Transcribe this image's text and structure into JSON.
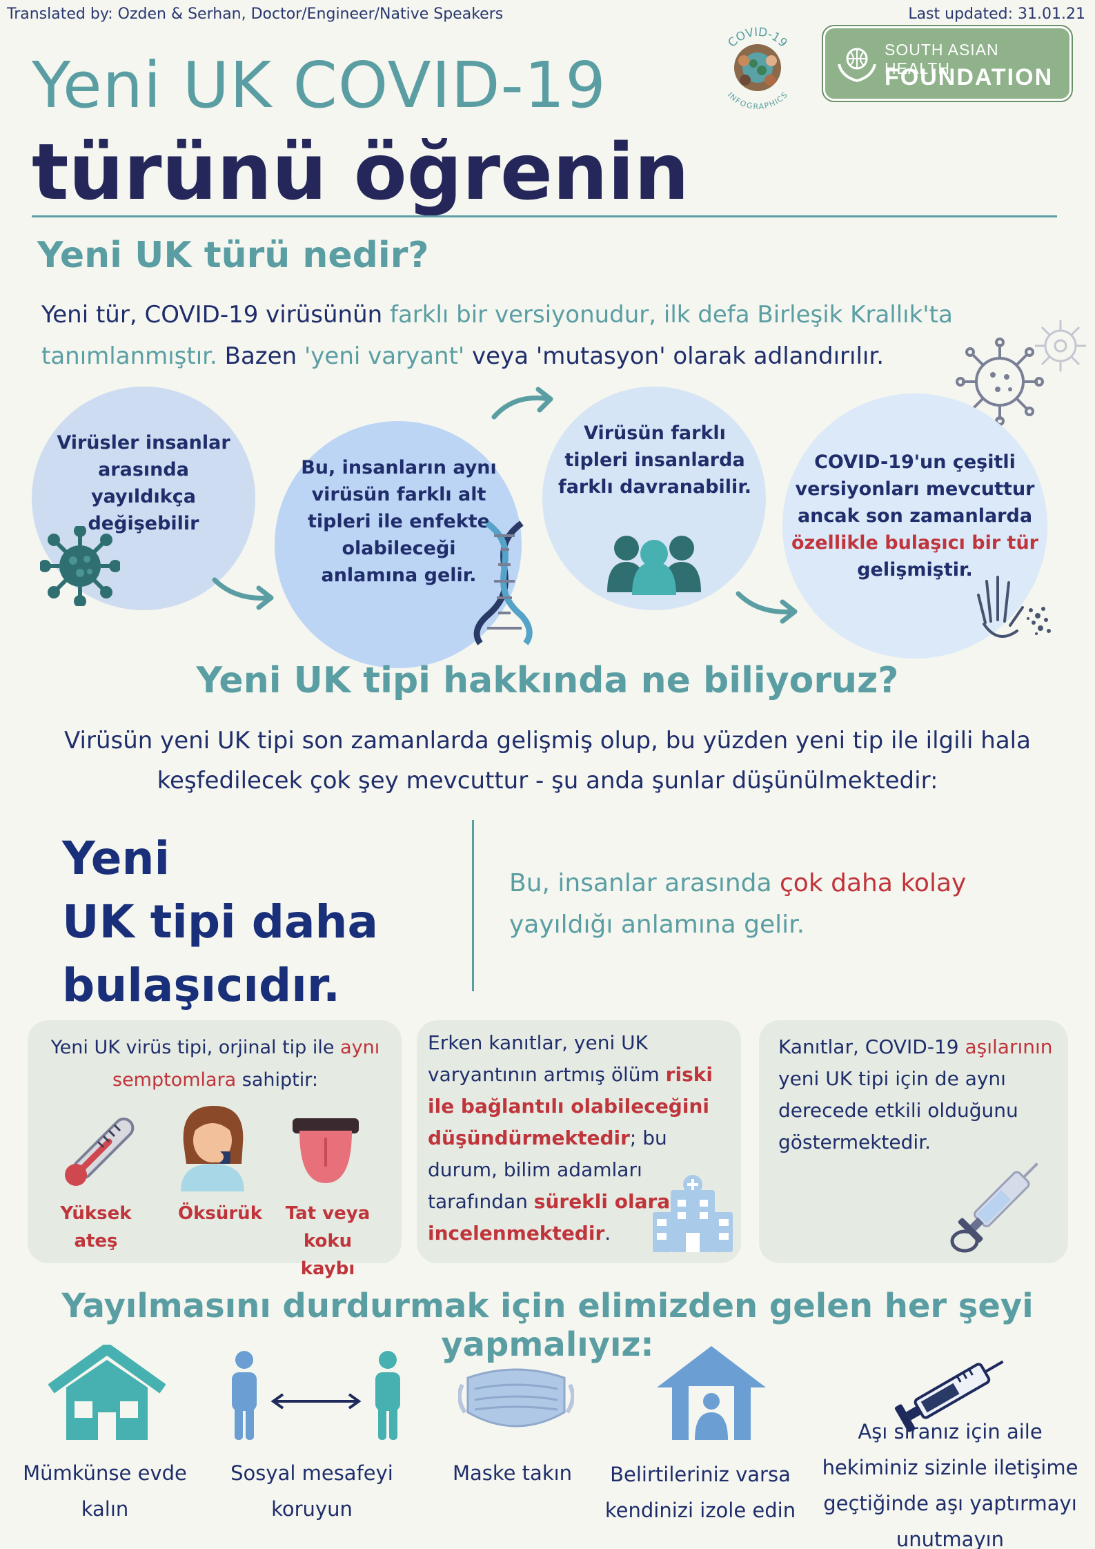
{
  "header": {
    "credit": "Translated by: Ozden & Serhan, Doctor/Engineer/Native Speakers",
    "updated": "Last updated: 31.01.21",
    "badge_top": "COVID-19",
    "badge_bottom": "INFOGRAPHICS",
    "org_line1": "SOUTH ASIAN HEALTH",
    "org_line2": "FOUNDATION"
  },
  "title": {
    "line1": "Yeni UK COVID-19",
    "line2": "türünü öğrenin"
  },
  "what": {
    "heading": "Yeni UK türü nedir?",
    "p_a": "Yeni tür, COVID-19 virüsünün ",
    "p_b": "farklı bir versiyonudur, ilk defa Birleşik Krallık'ta tanımlanmıştır.",
    "p_c": " Bazen ",
    "p_d": "'yeni varyant'",
    "p_e": " veya 'mutasyon' olarak adlandırılır."
  },
  "circles": {
    "c1": "Virüsler insanlar arasında yayıldıkça değişebilir",
    "c2": "Bu, insanların aynı virüsün farklı alt tipleri ile enfekte olabileceği anlamına gelir.",
    "c3": "Virüsün farklı tipleri insanlarda farklı davranabilir.",
    "c4_a": "COVID-19'un çeşitli versiyonları mevcuttur ancak son zamanlarda",
    "c4_b": "özellikle bulaşıcı bir tür",
    "c4_c": "gelişmiştir."
  },
  "know": {
    "heading": "Yeni UK tipi hakkında ne biliyoruz?",
    "line1": "Virüsün yeni UK tipi son zamanlarda gelişmiş olup, bu yüzden yeni tip ile ilgili hala",
    "line2": "keşfedilecek çok şey mevcuttur - şu anda şunlar düşünülmektedir:"
  },
  "claim": {
    "l1": "Yeni",
    "l2": "UK tipi daha",
    "l3": "bulaşıcıdır.",
    "expl_a": "Bu, insanlar arasında ",
    "expl_b": "çok daha kolay",
    "expl_c": "yayıldığı anlamına gelir."
  },
  "card1": {
    "a": "Yeni UK virüs tipi, orjinal tip ile ",
    "b": "aynı semptomlara",
    "c": " sahiptir:",
    "s1": "Yüksek ateş",
    "s2": "Öksürük",
    "s3": "Tat veya koku kaybı"
  },
  "card2": {
    "a": "Erken kanıtlar, yeni UK varyantının artmış ölüm ",
    "b": "riski ile bağlantılı olabileceğini düşündürmektedir",
    "c": "; bu durum, bilim adamları tarafından ",
    "d": "sürekli olarak incelenmektedir",
    "e": "."
  },
  "card3": {
    "a": "Kanıtlar, COVID-19 ",
    "b": "aşılarının",
    "c": " yeni UK tipi için de aynı derecede etkili olduğunu göstermektedir."
  },
  "stop": {
    "heading": "Yayılmasını durdurmak için elimizden gelen her şeyi yapmalıyız:",
    "a1": "Mümkünse evde kalın",
    "a2": "Sosyal mesafeyi koruyun",
    "a3": "Maske takın",
    "a4": "Belirtileriniz varsa kendinizi izole edin",
    "a5": "Aşı sıranız için aile hekiminiz sizinle iletişime geçtiğinde aşı yaptırmayı unutmayın"
  },
  "colors": {
    "teal": "#5a9ea3",
    "navy": "#1f2d6b",
    "red": "#c0343b",
    "green_logo": "#8fb28a"
  }
}
